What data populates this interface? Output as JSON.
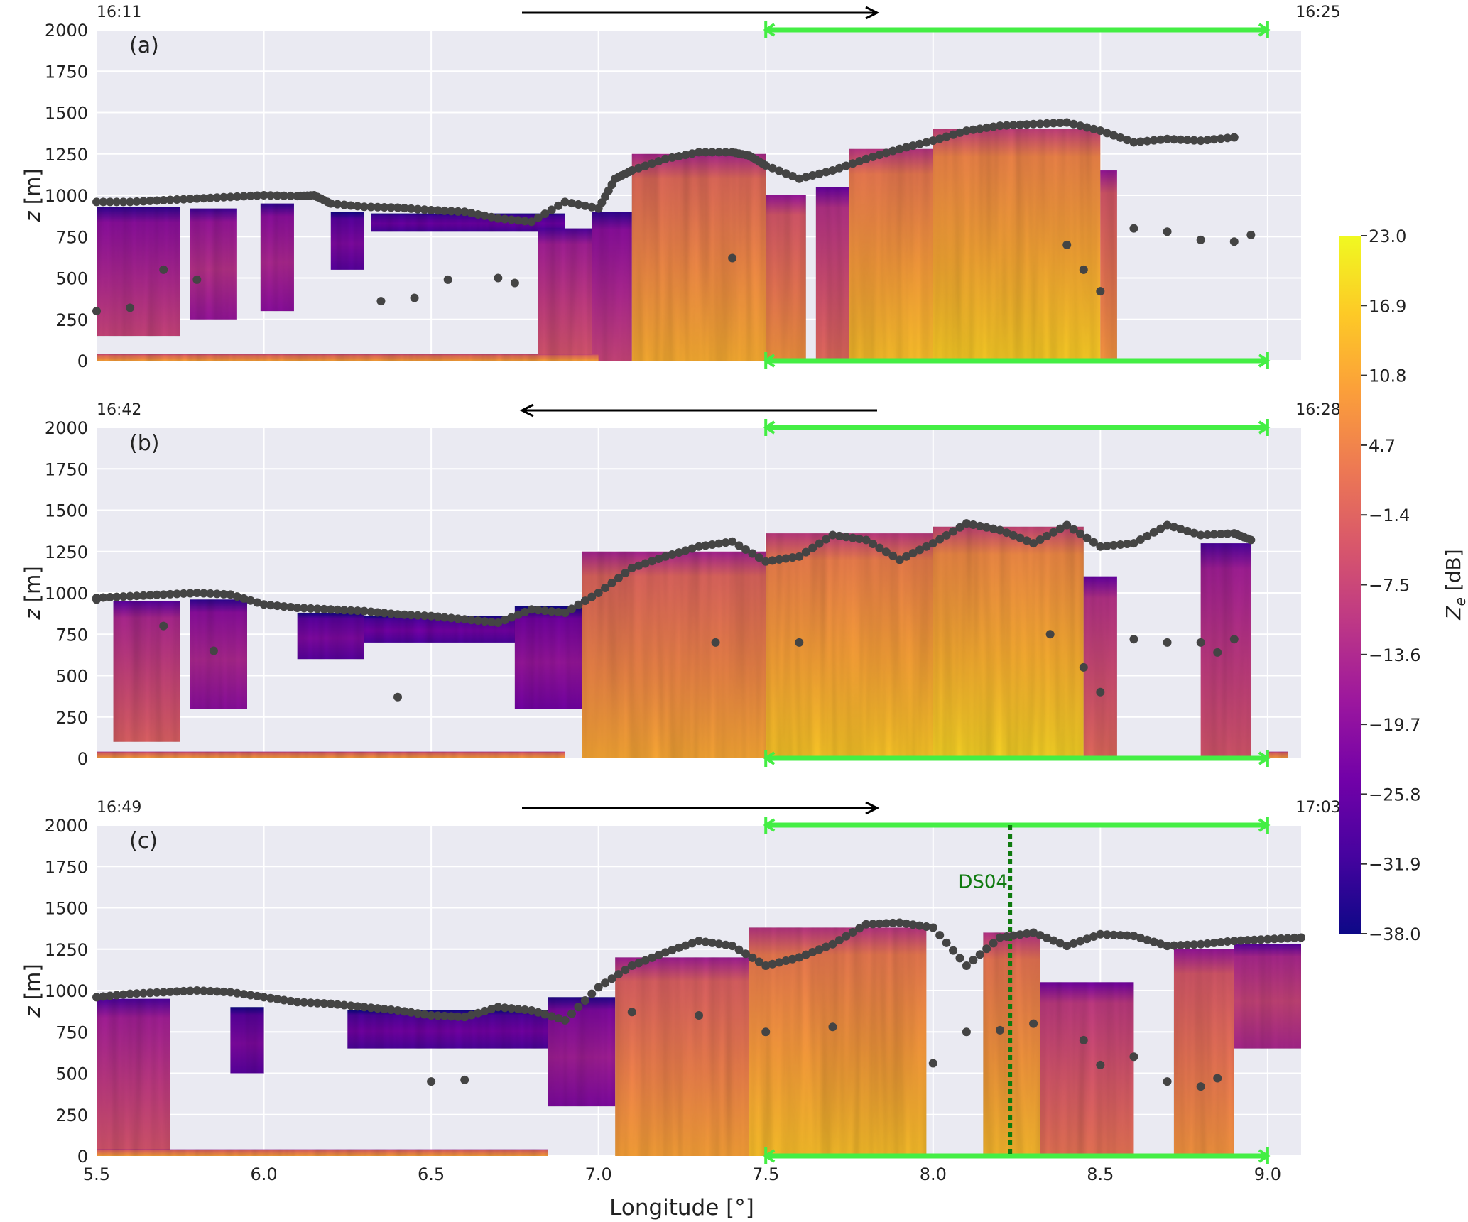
{
  "chart_data": {
    "type": "heatmap",
    "colorbar": {
      "label_main": "Z",
      "label_sub": "e",
      "label_unit": " [dB]",
      "min": -38.0,
      "max": 23.0,
      "ticks": [
        "23.0",
        "16.9",
        "10.8",
        "4.7",
        "−1.4",
        "−7.5",
        "−13.6",
        "−19.7",
        "−25.8",
        "−31.9",
        "−38.0"
      ],
      "colors": [
        "#0d0887",
        "#46039f",
        "#7201a8",
        "#9c179e",
        "#bd3786",
        "#d8576b",
        "#ed7953",
        "#fb9f3a",
        "#fdca26",
        "#f0f921"
      ]
    },
    "xlabel": "Longitude [°]",
    "xlim": [
      5.5,
      9.1
    ],
    "xticks": [
      5.5,
      6.0,
      6.5,
      7.0,
      7.5,
      8.0,
      8.5,
      9.0
    ],
    "xtick_labels": [
      "5.5",
      "6.0",
      "6.5",
      "7.0",
      "7.5",
      "8.0",
      "8.5",
      "9.0"
    ],
    "ylabel_main": "z",
    "ylabel_unit": " [m]",
    "ylim": [
      0,
      2000
    ],
    "yticks": [
      0,
      250,
      500,
      750,
      1000,
      1250,
      1500,
      1750,
      2000
    ],
    "ytick_labels": [
      "0",
      "250",
      "500",
      "750",
      "1000",
      "1250",
      "1500",
      "1750",
      "2000"
    ],
    "green_segment": {
      "x": [
        7.5,
        9.0
      ],
      "color": "#44ee44"
    },
    "panels": [
      {
        "label": "(a)",
        "time_left": "16:11",
        "time_right": "16:25",
        "direction": "right",
        "echo": [
          {
            "x0": 5.5,
            "x1": 5.75,
            "base": 150,
            "top": 930,
            "core": -14
          },
          {
            "x0": 5.78,
            "x1": 5.92,
            "base": 250,
            "top": 920,
            "core": -12
          },
          {
            "x0": 5.99,
            "x1": 6.09,
            "base": 300,
            "top": 950,
            "core": -14
          },
          {
            "x0": 6.2,
            "x1": 6.3,
            "base": 550,
            "top": 900,
            "core": -22
          },
          {
            "x0": 6.32,
            "x1": 6.9,
            "base": 780,
            "top": 890,
            "core": -25
          },
          {
            "x0": 6.82,
            "x1": 6.98,
            "base": 0,
            "top": 800,
            "core": -10
          },
          {
            "x0": 6.98,
            "x1": 7.1,
            "base": 0,
            "top": 900,
            "core": -14
          },
          {
            "x0": 7.1,
            "x1": 7.5,
            "base": 0,
            "top": 1250,
            "core": 6
          },
          {
            "x0": 7.5,
            "x1": 7.62,
            "base": 0,
            "top": 1000,
            "core": 2
          },
          {
            "x0": 7.65,
            "x1": 7.75,
            "base": 0,
            "top": 1050,
            "core": -6
          },
          {
            "x0": 7.75,
            "x1": 8.0,
            "base": 0,
            "top": 1280,
            "core": 9
          },
          {
            "x0": 8.0,
            "x1": 8.5,
            "base": 0,
            "top": 1400,
            "core": 11
          },
          {
            "x0": 8.5,
            "x1": 8.55,
            "base": 0,
            "top": 1150,
            "core": 2
          },
          {
            "x0": 5.5,
            "x1": 7.0,
            "base": 0,
            "top": 40,
            "core": 4
          }
        ],
        "cloud_top": [
          [
            5.5,
            960
          ],
          [
            5.6,
            960
          ],
          [
            5.7,
            970
          ],
          [
            5.8,
            980
          ],
          [
            5.9,
            990
          ],
          [
            6.0,
            1000
          ],
          [
            6.1,
            995
          ],
          [
            6.15,
            1000
          ],
          [
            6.2,
            950
          ],
          [
            6.3,
            930
          ],
          [
            6.4,
            925
          ],
          [
            6.5,
            910
          ],
          [
            6.6,
            900
          ],
          [
            6.7,
            860
          ],
          [
            6.8,
            840
          ],
          [
            6.9,
            960
          ],
          [
            7.0,
            920
          ],
          [
            7.05,
            1100
          ],
          [
            7.1,
            1150
          ],
          [
            7.2,
            1220
          ],
          [
            7.3,
            1260
          ],
          [
            7.4,
            1260
          ],
          [
            7.45,
            1240
          ],
          [
            7.5,
            1180
          ],
          [
            7.6,
            1100
          ],
          [
            7.7,
            1150
          ],
          [
            7.8,
            1220
          ],
          [
            7.9,
            1280
          ],
          [
            8.0,
            1330
          ],
          [
            8.1,
            1390
          ],
          [
            8.2,
            1420
          ],
          [
            8.3,
            1430
          ],
          [
            8.4,
            1440
          ],
          [
            8.5,
            1390
          ],
          [
            8.6,
            1320
          ],
          [
            8.7,
            1340
          ],
          [
            8.8,
            1330
          ],
          [
            8.9,
            1350
          ]
        ],
        "cloud_base": [
          [
            5.5,
            300
          ],
          [
            5.6,
            320
          ],
          [
            5.7,
            550
          ],
          [
            5.8,
            490
          ],
          [
            6.35,
            360
          ],
          [
            6.45,
            380
          ],
          [
            6.55,
            490
          ],
          [
            6.7,
            500
          ],
          [
            6.75,
            470
          ],
          [
            7.4,
            620
          ],
          [
            8.4,
            700
          ],
          [
            8.45,
            550
          ],
          [
            8.5,
            420
          ],
          [
            8.6,
            800
          ],
          [
            8.7,
            780
          ],
          [
            8.8,
            730
          ],
          [
            8.9,
            720
          ],
          [
            8.95,
            760
          ]
        ]
      },
      {
        "label": "(b)",
        "time_left": "16:42",
        "time_right": "16:28",
        "direction": "left",
        "echo": [
          {
            "x0": 5.55,
            "x1": 5.75,
            "base": 100,
            "top": 950,
            "core": -8
          },
          {
            "x0": 5.78,
            "x1": 5.95,
            "base": 300,
            "top": 960,
            "core": -14
          },
          {
            "x0": 6.1,
            "x1": 6.3,
            "base": 600,
            "top": 880,
            "core": -22
          },
          {
            "x0": 6.3,
            "x1": 6.8,
            "base": 700,
            "top": 860,
            "core": -24
          },
          {
            "x0": 6.75,
            "x1": 6.95,
            "base": 300,
            "top": 920,
            "core": -18
          },
          {
            "x0": 6.95,
            "x1": 7.5,
            "base": 0,
            "top": 1250,
            "core": 5
          },
          {
            "x0": 7.5,
            "x1": 8.0,
            "base": 0,
            "top": 1360,
            "core": 10
          },
          {
            "x0": 8.0,
            "x1": 8.45,
            "base": 0,
            "top": 1400,
            "core": 12
          },
          {
            "x0": 8.45,
            "x1": 8.55,
            "base": 0,
            "top": 1100,
            "core": -6
          },
          {
            "x0": 8.8,
            "x1": 8.95,
            "base": 0,
            "top": 1300,
            "core": -10
          },
          {
            "x0": 5.5,
            "x1": 6.9,
            "base": 0,
            "top": 40,
            "core": 4
          },
          {
            "x0": 9.0,
            "x1": 9.06,
            "base": 0,
            "top": 40,
            "core": 4
          }
        ],
        "cloud_top": [
          [
            5.5,
            970
          ],
          [
            5.6,
            980
          ],
          [
            5.7,
            990
          ],
          [
            5.8,
            1000
          ],
          [
            5.9,
            990
          ],
          [
            6.0,
            930
          ],
          [
            6.1,
            910
          ],
          [
            6.2,
            900
          ],
          [
            6.3,
            890
          ],
          [
            6.4,
            870
          ],
          [
            6.5,
            860
          ],
          [
            6.6,
            840
          ],
          [
            6.7,
            820
          ],
          [
            6.8,
            900
          ],
          [
            6.9,
            880
          ],
          [
            7.0,
            1000
          ],
          [
            7.1,
            1150
          ],
          [
            7.2,
            1220
          ],
          [
            7.3,
            1280
          ],
          [
            7.4,
            1310
          ],
          [
            7.5,
            1190
          ],
          [
            7.6,
            1220
          ],
          [
            7.7,
            1350
          ],
          [
            7.8,
            1320
          ],
          [
            7.9,
            1200
          ],
          [
            8.0,
            1300
          ],
          [
            8.1,
            1420
          ],
          [
            8.2,
            1380
          ],
          [
            8.3,
            1300
          ],
          [
            8.4,
            1410
          ],
          [
            8.5,
            1280
          ],
          [
            8.6,
            1300
          ],
          [
            8.7,
            1410
          ],
          [
            8.8,
            1350
          ],
          [
            8.9,
            1360
          ],
          [
            8.95,
            1320
          ]
        ],
        "cloud_base": [
          [
            5.5,
            960
          ],
          [
            5.7,
            800
          ],
          [
            5.85,
            650
          ],
          [
            6.4,
            370
          ],
          [
            7.35,
            700
          ],
          [
            7.6,
            700
          ],
          [
            8.35,
            750
          ],
          [
            8.45,
            550
          ],
          [
            8.5,
            400
          ],
          [
            8.6,
            720
          ],
          [
            8.7,
            700
          ],
          [
            8.8,
            700
          ],
          [
            8.85,
            640
          ],
          [
            8.9,
            720
          ]
        ]
      },
      {
        "label": "(c)",
        "time_left": "16:49",
        "time_right": "17:03",
        "direction": "right",
        "annotation": {
          "text": "DS04",
          "x": 8.23
        },
        "echo": [
          {
            "x0": 5.5,
            "x1": 5.72,
            "base": 0,
            "top": 950,
            "core": -10
          },
          {
            "x0": 5.9,
            "x1": 6.0,
            "base": 500,
            "top": 900,
            "core": -22
          },
          {
            "x0": 6.25,
            "x1": 6.9,
            "base": 650,
            "top": 880,
            "core": -24
          },
          {
            "x0": 6.85,
            "x1": 7.05,
            "base": 300,
            "top": 960,
            "core": -16
          },
          {
            "x0": 7.05,
            "x1": 7.45,
            "base": 0,
            "top": 1200,
            "core": 4
          },
          {
            "x0": 7.45,
            "x1": 7.98,
            "base": 0,
            "top": 1380,
            "core": 9
          },
          {
            "x0": 8.15,
            "x1": 8.32,
            "base": 0,
            "top": 1350,
            "core": 8
          },
          {
            "x0": 8.32,
            "x1": 8.6,
            "base": 0,
            "top": 1050,
            "core": -4
          },
          {
            "x0": 8.72,
            "x1": 8.9,
            "base": 0,
            "top": 1250,
            "core": 2
          },
          {
            "x0": 8.9,
            "x1": 9.1,
            "base": 650,
            "top": 1280,
            "core": -8
          },
          {
            "x0": 5.5,
            "x1": 6.85,
            "base": 0,
            "top": 40,
            "core": 4
          }
        ],
        "cloud_top": [
          [
            5.5,
            960
          ],
          [
            5.6,
            980
          ],
          [
            5.7,
            990
          ],
          [
            5.8,
            1000
          ],
          [
            5.9,
            990
          ],
          [
            6.0,
            960
          ],
          [
            6.1,
            930
          ],
          [
            6.2,
            920
          ],
          [
            6.3,
            900
          ],
          [
            6.4,
            880
          ],
          [
            6.5,
            850
          ],
          [
            6.6,
            840
          ],
          [
            6.7,
            900
          ],
          [
            6.8,
            880
          ],
          [
            6.9,
            820
          ],
          [
            7.0,
            1020
          ],
          [
            7.1,
            1150
          ],
          [
            7.2,
            1230
          ],
          [
            7.3,
            1300
          ],
          [
            7.4,
            1270
          ],
          [
            7.5,
            1150
          ],
          [
            7.6,
            1200
          ],
          [
            7.7,
            1280
          ],
          [
            7.8,
            1400
          ],
          [
            7.9,
            1410
          ],
          [
            8.0,
            1380
          ],
          [
            8.1,
            1150
          ],
          [
            8.2,
            1320
          ],
          [
            8.3,
            1350
          ],
          [
            8.4,
            1270
          ],
          [
            8.5,
            1340
          ],
          [
            8.6,
            1330
          ],
          [
            8.7,
            1270
          ],
          [
            8.8,
            1280
          ],
          [
            8.9,
            1300
          ],
          [
            9.0,
            1310
          ],
          [
            9.1,
            1320
          ]
        ],
        "cloud_base": [
          [
            6.5,
            450
          ],
          [
            6.6,
            460
          ],
          [
            7.1,
            870
          ],
          [
            7.3,
            850
          ],
          [
            7.5,
            750
          ],
          [
            7.7,
            780
          ],
          [
            8.0,
            560
          ],
          [
            8.1,
            750
          ],
          [
            8.2,
            760
          ],
          [
            8.3,
            800
          ],
          [
            8.45,
            700
          ],
          [
            8.5,
            550
          ],
          [
            8.6,
            600
          ],
          [
            8.7,
            450
          ],
          [
            8.8,
            420
          ],
          [
            8.85,
            470
          ]
        ]
      }
    ]
  }
}
